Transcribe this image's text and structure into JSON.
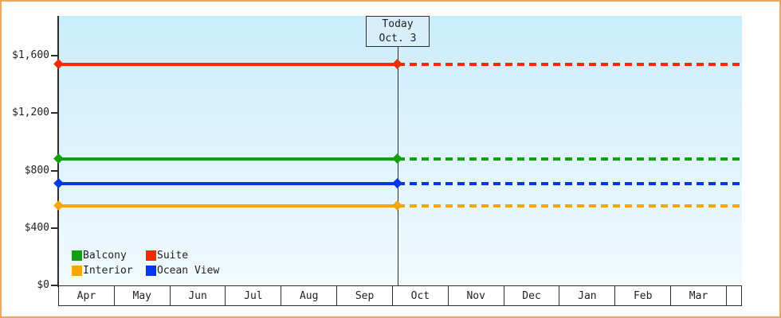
{
  "window": {
    "background": "#ffffff",
    "frame_color": "#eba95f"
  },
  "colors": {
    "axis": "#2e2e2e",
    "text": "#222222",
    "plot_bg_top": "#cbedfb",
    "plot_bg_bottom": "#f2fafd",
    "month_band_fill": "#ffffff",
    "today_line": "#2e2e2e",
    "today_box_fill": "#d8effb"
  },
  "chart_data": {
    "type": "line",
    "title": "",
    "x_categories": [
      "Apr",
      "May",
      "Jun",
      "Jul",
      "Aug",
      "Sep",
      "Oct",
      "Nov",
      "Dec",
      "Jan",
      "Feb",
      "Mar"
    ],
    "y_axis": {
      "ticks": [
        {
          "label": "$0",
          "value": 0
        },
        {
          "label": "$400",
          "value": 400
        },
        {
          "label": "$800",
          "value": 800
        },
        {
          "label": "$1,200",
          "value": 1200
        },
        {
          "label": "$1,600",
          "value": 1600
        }
      ],
      "range": [
        0,
        1880
      ]
    },
    "series": [
      {
        "name": "Balcony",
        "color": "#12a10e",
        "value": 880,
        "style": "solid-then-dashed"
      },
      {
        "name": "Suite",
        "color": "#f32b00",
        "value": 1540,
        "style": "solid-then-dashed"
      },
      {
        "name": "Interior",
        "color": "#ffa401",
        "value": 555,
        "style": "solid-then-dashed"
      },
      {
        "name": "Ocean View",
        "color": "#0636e8",
        "value": 710,
        "style": "solid-then-dashed"
      }
    ],
    "today_marker": {
      "line1": "Today",
      "line2": "Oct. 3",
      "month": "Oct",
      "day": 3
    },
    "legend": {
      "position": "bottom-left-inside",
      "entries": [
        "Balcony",
        "Suite",
        "Interior",
        "Ocean View"
      ]
    },
    "grid": false
  }
}
